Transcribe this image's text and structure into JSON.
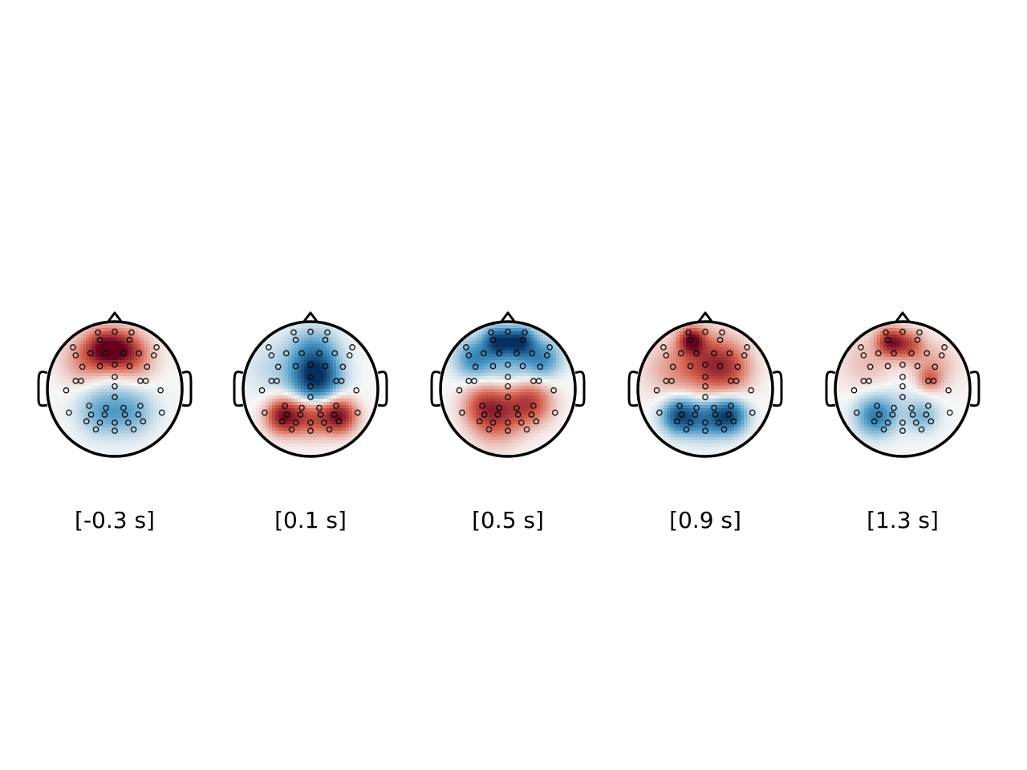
{
  "maps": [
    {
      "label": "[-0.3 s]",
      "blobs": [
        {
          "u": -0.15,
          "v": 0.6,
          "amp": 0.85,
          "s": 0.2
        },
        {
          "u": 0.15,
          "v": 0.58,
          "amp": 0.55,
          "s": 0.2
        },
        {
          "u": -0.45,
          "v": 0.4,
          "amp": 0.35,
          "s": 0.25
        },
        {
          "u": 0.3,
          "v": 0.4,
          "amp": 0.3,
          "s": 0.25
        },
        {
          "u": -0.2,
          "v": -0.35,
          "amp": -0.3,
          "s": 0.22
        },
        {
          "u": 0.25,
          "v": -0.35,
          "amp": -0.28,
          "s": 0.22
        },
        {
          "u": 0.0,
          "v": -0.1,
          "amp": -0.15,
          "s": 0.4
        }
      ]
    },
    {
      "label": "[0.1 s]",
      "blobs": [
        {
          "u": 0.08,
          "v": 0.15,
          "amp": -0.95,
          "s": 0.24
        },
        {
          "u": 0.05,
          "v": 0.55,
          "amp": -0.45,
          "s": 0.25
        },
        {
          "u": -0.55,
          "v": 0.3,
          "amp": -0.15,
          "s": 0.3
        },
        {
          "u": -0.4,
          "v": -0.4,
          "amp": 0.9,
          "s": 0.18
        },
        {
          "u": 0.42,
          "v": -0.4,
          "amp": 0.9,
          "s": 0.18
        },
        {
          "u": 0.0,
          "v": -0.42,
          "amp": 0.55,
          "s": 0.2
        }
      ]
    },
    {
      "label": "[0.5 s]",
      "blobs": [
        {
          "u": -0.15,
          "v": 0.7,
          "amp": -0.9,
          "s": 0.15
        },
        {
          "u": 0.18,
          "v": 0.7,
          "amp": -0.9,
          "s": 0.15
        },
        {
          "u": -0.5,
          "v": 0.45,
          "amp": -0.55,
          "s": 0.2
        },
        {
          "u": 0.5,
          "v": 0.45,
          "amp": -0.55,
          "s": 0.2
        },
        {
          "u": 0.0,
          "v": 0.3,
          "amp": -0.25,
          "s": 0.22
        },
        {
          "u": -0.35,
          "v": -0.25,
          "amp": 0.55,
          "s": 0.22
        },
        {
          "u": 0.35,
          "v": -0.2,
          "amp": 0.55,
          "s": 0.22
        },
        {
          "u": 0.0,
          "v": -0.3,
          "amp": 0.35,
          "s": 0.25
        },
        {
          "u": -0.2,
          "v": -0.55,
          "amp": 0.25,
          "s": 0.25
        }
      ]
    },
    {
      "label": "[0.9 s]",
      "blobs": [
        {
          "u": -0.2,
          "v": 0.72,
          "amp": 0.85,
          "s": 0.13
        },
        {
          "u": 0.05,
          "v": 0.4,
          "amp": 0.55,
          "s": 0.3
        },
        {
          "u": 0.35,
          "v": 0.3,
          "amp": 0.4,
          "s": 0.25
        },
        {
          "u": -0.5,
          "v": 0.3,
          "amp": 0.25,
          "s": 0.3
        },
        {
          "u": -0.38,
          "v": -0.4,
          "amp": -0.85,
          "s": 0.18
        },
        {
          "u": 0.35,
          "v": -0.4,
          "amp": -0.85,
          "s": 0.18
        },
        {
          "u": 0.0,
          "v": -0.45,
          "amp": -0.5,
          "s": 0.2
        }
      ]
    },
    {
      "label": "[1.3 s]",
      "blobs": [
        {
          "u": -0.18,
          "v": 0.7,
          "amp": 0.8,
          "s": 0.14
        },
        {
          "u": 0.1,
          "v": 0.65,
          "amp": 0.5,
          "s": 0.15
        },
        {
          "u": -0.5,
          "v": 0.4,
          "amp": 0.2,
          "s": 0.3
        },
        {
          "u": 0.45,
          "v": 0.35,
          "amp": 0.25,
          "s": 0.25
        },
        {
          "u": 0.4,
          "v": 0.15,
          "amp": 0.35,
          "s": 0.12
        },
        {
          "u": -0.4,
          "v": -0.4,
          "amp": -0.6,
          "s": 0.2
        },
        {
          "u": 0.3,
          "v": -0.4,
          "amp": -0.3,
          "s": 0.16
        },
        {
          "u": 0.0,
          "v": -0.2,
          "amp": -0.1,
          "s": 0.3
        }
      ]
    }
  ],
  "sensors": [
    [
      -0.25,
      0.84
    ],
    [
      0.0,
      0.85
    ],
    [
      0.25,
      0.84
    ],
    [
      -0.22,
      0.73
    ],
    [
      0.22,
      0.73
    ],
    [
      -0.62,
      0.62
    ],
    [
      0.62,
      0.62
    ],
    [
      -0.58,
      0.5
    ],
    [
      -0.36,
      0.53
    ],
    [
      -0.13,
      0.53
    ],
    [
      0.13,
      0.53
    ],
    [
      0.36,
      0.53
    ],
    [
      0.58,
      0.5
    ],
    [
      -0.48,
      0.33
    ],
    [
      -0.22,
      0.34
    ],
    [
      0.0,
      0.36
    ],
    [
      0.22,
      0.34
    ],
    [
      0.48,
      0.33
    ],
    [
      0.0,
      0.18
    ],
    [
      -0.58,
      0.12
    ],
    [
      -0.5,
      0.12
    ],
    [
      0.0,
      0.04
    ],
    [
      0.38,
      0.12
    ],
    [
      0.46,
      0.12
    ],
    [
      -0.72,
      -0.02
    ],
    [
      0.68,
      -0.02
    ],
    [
      0.0,
      -0.12
    ],
    [
      -0.38,
      -0.25
    ],
    [
      -0.13,
      -0.28
    ],
    [
      0.13,
      -0.28
    ],
    [
      0.38,
      -0.25
    ],
    [
      -0.68,
      -0.35
    ],
    [
      -0.35,
      -0.38
    ],
    [
      -0.15,
      -0.38
    ],
    [
      0.15,
      -0.38
    ],
    [
      0.35,
      -0.38
    ],
    [
      0.7,
      -0.35
    ],
    [
      -0.42,
      -0.48
    ],
    [
      -0.22,
      -0.5
    ],
    [
      0.0,
      -0.5
    ],
    [
      0.2,
      -0.5
    ],
    [
      0.42,
      -0.48
    ],
    [
      -0.28,
      -0.6
    ],
    [
      0.0,
      -0.62
    ],
    [
      0.28,
      -0.6
    ]
  ],
  "color_scale": {
    "negative": "#053061",
    "mid_negative": "#4393c3",
    "neutral": "#f7f7f7",
    "mid_positive": "#d6604d",
    "positive": "#67001f"
  }
}
